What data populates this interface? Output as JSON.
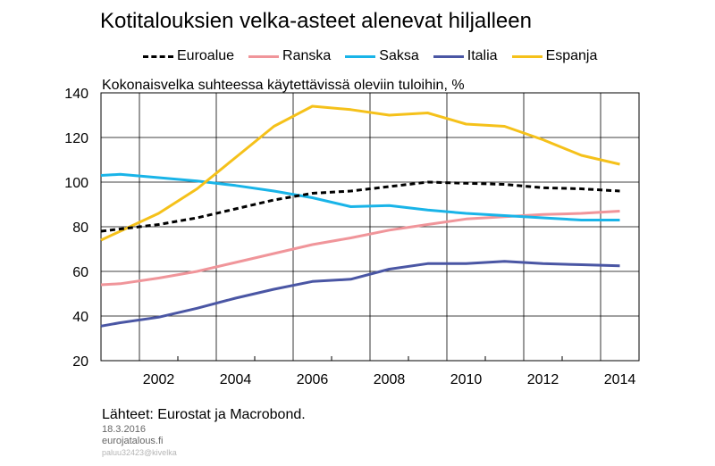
{
  "header": {
    "title": "Kotitalouksien velka-asteet alenevat hiljalleen",
    "subtitle": "Kokonaisvelka suhteessa käytettävissä oleviin tuloihin, %"
  },
  "footer": {
    "source": "Lähteet: Eurostat ja Macrobond.",
    "date": "18.3.2016",
    "site": "eurojatalous.fi",
    "code": "paluu32423@kivelka"
  },
  "colors": {
    "Euroalue": "#000000",
    "Ranska": "#f0959a",
    "Saksa": "#19b4e8",
    "Italia": "#4a56a4",
    "Espanja": "#f5c11a"
  },
  "chart_data": {
    "type": "line",
    "title": "Kotitalouksien velka-asteet alenevat hiljalleen",
    "ylabel": "Kokonaisvelka suhteessa käytettävissä oleviin tuloihin, %",
    "xlabel": "",
    "xlim": [
      2001,
      2015
    ],
    "ylim": [
      20,
      140
    ],
    "y_ticks": [
      140,
      120,
      100,
      80,
      60,
      40,
      20
    ],
    "x_ticks": [
      2002,
      2004,
      2006,
      2008,
      2010,
      2012,
      2014
    ],
    "grid": true,
    "legend_position": "top",
    "x": [
      2001,
      2001.5,
      2002.5,
      2003.5,
      2004.5,
      2005.5,
      2006.5,
      2007.5,
      2008.5,
      2009.5,
      2010.5,
      2011.5,
      2012.5,
      2013.5,
      2014.5
    ],
    "series": [
      {
        "name": "Euroalue",
        "style": "dashed",
        "values": [
          78,
          79,
          81,
          84,
          88,
          92,
          95,
          96,
          98,
          100,
          99.5,
          99,
          97.5,
          97,
          96
        ]
      },
      {
        "name": "Ranska",
        "style": "solid",
        "values": [
          54,
          54.5,
          57,
          60,
          64,
          68,
          72,
          75,
          78.5,
          81,
          83.5,
          84.5,
          85.5,
          86,
          87
        ]
      },
      {
        "name": "Saksa",
        "style": "solid",
        "values": [
          103,
          103.5,
          102,
          100.5,
          98.5,
          96,
          93,
          89,
          89.5,
          87.5,
          86,
          85,
          84,
          83,
          83
        ]
      },
      {
        "name": "Italia",
        "style": "solid",
        "values": [
          35.5,
          37,
          39.5,
          43.5,
          48,
          52,
          55.5,
          56.5,
          61,
          63.5,
          63.5,
          64.5,
          63.5,
          63,
          62.5
        ]
      },
      {
        "name": "Espanja",
        "style": "solid",
        "values": [
          74,
          78,
          86,
          97,
          111,
          125,
          134,
          132.5,
          130,
          131,
          126,
          125,
          119,
          112,
          108
        ]
      }
    ]
  }
}
